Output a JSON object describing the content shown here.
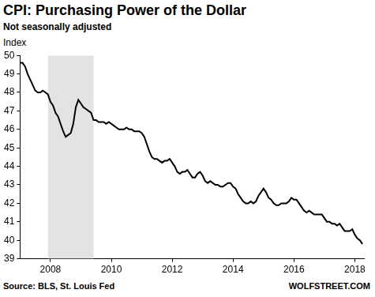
{
  "chart_data": {
    "type": "line",
    "title": "CPI: Purchasing Power of the Dollar",
    "subtitle": "Not seasonally adjusted",
    "ylabel": "Index",
    "source": "Source: BLS, St. Louis Fed",
    "credit": "WOLFSTREET.COM",
    "color": "#000000",
    "grid": false,
    "xlim": [
      2007,
      2018.3
    ],
    "xticks": [
      2008,
      2010,
      2012,
      2014,
      2016,
      2018
    ],
    "ylim": [
      39,
      50
    ],
    "yticks": [
      39,
      40,
      41,
      42,
      43,
      44,
      45,
      46,
      47,
      48,
      49,
      50
    ],
    "shaded_ranges": [
      [
        2007.917,
        2009.417
      ]
    ],
    "x": [
      2007,
      2007.083,
      2007.167,
      2007.25,
      2007.333,
      2007.417,
      2007.5,
      2007.583,
      2007.667,
      2007.75,
      2007.833,
      2007.917,
      2008,
      2008.083,
      2008.167,
      2008.25,
      2008.333,
      2008.417,
      2008.5,
      2008.583,
      2008.667,
      2008.75,
      2008.833,
      2008.917,
      2009,
      2009.083,
      2009.167,
      2009.25,
      2009.333,
      2009.417,
      2009.5,
      2009.583,
      2009.667,
      2009.75,
      2009.833,
      2009.917,
      2010,
      2010.083,
      2010.167,
      2010.25,
      2010.333,
      2010.417,
      2010.5,
      2010.583,
      2010.667,
      2010.75,
      2010.833,
      2010.917,
      2011,
      2011.083,
      2011.167,
      2011.25,
      2011.333,
      2011.417,
      2011.5,
      2011.583,
      2011.667,
      2011.75,
      2011.833,
      2011.917,
      2012,
      2012.083,
      2012.167,
      2012.25,
      2012.333,
      2012.417,
      2012.5,
      2012.583,
      2012.667,
      2012.75,
      2012.833,
      2012.917,
      2013,
      2013.083,
      2013.167,
      2013.25,
      2013.333,
      2013.417,
      2013.5,
      2013.583,
      2013.667,
      2013.75,
      2013.833,
      2013.917,
      2014,
      2014.083,
      2014.167,
      2014.25,
      2014.333,
      2014.417,
      2014.5,
      2014.583,
      2014.667,
      2014.75,
      2014.833,
      2014.917,
      2015,
      2015.083,
      2015.167,
      2015.25,
      2015.333,
      2015.417,
      2015.5,
      2015.583,
      2015.667,
      2015.75,
      2015.833,
      2015.917,
      2016,
      2016.083,
      2016.167,
      2016.25,
      2016.333,
      2016.417,
      2016.5,
      2016.583,
      2016.667,
      2016.75,
      2016.833,
      2016.917,
      2017,
      2017.083,
      2017.167,
      2017.25,
      2017.333,
      2017.417,
      2017.5,
      2017.583,
      2017.667,
      2017.75,
      2017.833,
      2017.917,
      2018,
      2018.083,
      2018.167,
      2018.25
    ],
    "values": [
      49.6,
      49.6,
      49.4,
      49.0,
      48.7,
      48.4,
      48.1,
      48.0,
      48.0,
      48.1,
      48.0,
      47.9,
      47.5,
      47.3,
      46.9,
      46.7,
      46.3,
      45.9,
      45.6,
      45.7,
      45.8,
      46.3,
      47.2,
      47.6,
      47.4,
      47.2,
      47.1,
      47.0,
      46.9,
      46.5,
      46.5,
      46.4,
      46.4,
      46.4,
      46.3,
      46.4,
      46.3,
      46.2,
      46.1,
      46.0,
      46.0,
      46.0,
      46.1,
      46.0,
      46.0,
      45.9,
      45.9,
      45.9,
      45.8,
      45.6,
      45.2,
      44.8,
      44.5,
      44.4,
      44.4,
      44.3,
      44.2,
      44.3,
      44.3,
      44.4,
      44.2,
      44.0,
      43.7,
      43.6,
      43.7,
      43.7,
      43.8,
      43.6,
      43.4,
      43.4,
      43.6,
      43.7,
      43.5,
      43.2,
      43.1,
      43.2,
      43.1,
      43.0,
      43.0,
      42.9,
      42.9,
      43.0,
      43.1,
      43.1,
      42.9,
      42.8,
      42.5,
      42.3,
      42.1,
      42.0,
      42.0,
      42.1,
      42.0,
      42.1,
      42.4,
      42.6,
      42.8,
      42.6,
      42.3,
      42.2,
      42.0,
      41.9,
      41.9,
      42.0,
      42.0,
      42.0,
      42.1,
      42.3,
      42.2,
      42.2,
      42.0,
      41.8,
      41.6,
      41.5,
      41.6,
      41.5,
      41.4,
      41.4,
      41.4,
      41.4,
      41.2,
      41.0,
      41.0,
      40.9,
      40.9,
      40.8,
      40.9,
      40.7,
      40.5,
      40.5,
      40.5,
      40.6,
      40.3,
      40.1,
      40.0,
      39.8
    ]
  }
}
